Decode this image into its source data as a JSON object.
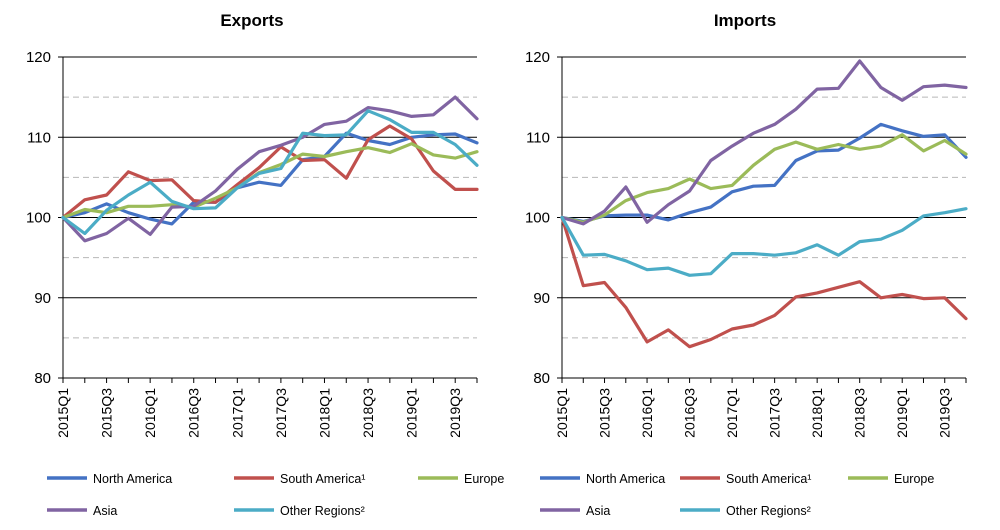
{
  "chart_data": [
    {
      "type": "line",
      "title": "Exports",
      "xlabel": "",
      "ylabel": "",
      "ylim": [
        80,
        120
      ],
      "yticks": [
        80,
        90,
        100,
        110,
        120
      ],
      "solid_gridlines": [
        90,
        100,
        110,
        120
      ],
      "dashed_gridlines": [
        85,
        95,
        105,
        115
      ],
      "x": [
        "2015Q1",
        "2015Q2",
        "2015Q3",
        "2015Q4",
        "2016Q1",
        "2016Q2",
        "2016Q3",
        "2016Q4",
        "2017Q1",
        "2017Q2",
        "2017Q3",
        "2017Q4",
        "2018Q1",
        "2018Q2",
        "2018Q3",
        "2018Q4",
        "2019Q1",
        "2019Q2",
        "2019Q3",
        "2019Q4"
      ],
      "x_tick_labels": [
        "2015Q1",
        "2015Q3",
        "2016Q1",
        "2016Q3",
        "2017Q1",
        "2017Q3",
        "2018Q1",
        "2018Q3",
        "2019Q1",
        "2019Q3"
      ],
      "series": [
        {
          "name": "North America",
          "color": "#4472c4",
          "values": [
            100,
            100.6,
            101.7,
            100.6,
            99.8,
            99.2,
            101.9,
            101.9,
            103.7,
            104.4,
            104.0,
            107.2,
            107.6,
            110.5,
            109.6,
            109.1,
            110.0,
            110.3,
            110.4,
            109.3
          ]
        },
        {
          "name": "South America¹",
          "color": "#c0504d",
          "values": [
            100,
            102.2,
            102.8,
            105.7,
            104.6,
            104.7,
            102.1,
            101.9,
            104.1,
            106.2,
            108.8,
            107.1,
            107.2,
            104.9,
            109.7,
            111.4,
            109.8,
            105.8,
            103.5,
            103.5
          ]
        },
        {
          "name": "Europe",
          "color": "#9bbb59",
          "values": [
            100,
            101.0,
            100.6,
            101.4,
            101.4,
            101.6,
            101.3,
            102.4,
            103.7,
            105.6,
            106.6,
            107.9,
            107.6,
            108.2,
            108.7,
            108.1,
            109.2,
            107.8,
            107.4,
            108.2
          ]
        },
        {
          "name": "Asia",
          "color": "#8064a2",
          "values": [
            100,
            97.1,
            98.0,
            99.9,
            97.9,
            101.3,
            101.4,
            103.3,
            106.0,
            108.2,
            109.0,
            110.0,
            111.6,
            112.0,
            113.7,
            113.3,
            112.6,
            112.8,
            115.0,
            112.3
          ]
        },
        {
          "name": "Other Regions²",
          "color": "#4bacc6",
          "values": [
            100,
            98.0,
            100.9,
            102.8,
            104.4,
            102.0,
            101.1,
            101.2,
            103.7,
            105.5,
            106.1,
            110.5,
            110.2,
            110.3,
            113.3,
            112.2,
            110.6,
            110.6,
            109.1,
            106.5
          ]
        }
      ],
      "legend": "bottom"
    },
    {
      "type": "line",
      "title": "Imports",
      "xlabel": "",
      "ylabel": "",
      "ylim": [
        80,
        120
      ],
      "yticks": [
        80,
        90,
        100,
        110,
        120
      ],
      "solid_gridlines": [
        90,
        100,
        110,
        120
      ],
      "dashed_gridlines": [
        85,
        95,
        105,
        115
      ],
      "x": [
        "2015Q1",
        "2015Q2",
        "2015Q3",
        "2015Q4",
        "2016Q1",
        "2016Q2",
        "2016Q3",
        "2016Q4",
        "2017Q1",
        "2017Q2",
        "2017Q3",
        "2017Q4",
        "2018Q1",
        "2018Q2",
        "2018Q3",
        "2018Q4",
        "2019Q1",
        "2019Q2",
        "2019Q3",
        "2019Q4"
      ],
      "x_tick_labels": [
        "2015Q1",
        "2015Q3",
        "2016Q1",
        "2016Q3",
        "2017Q1",
        "2017Q3",
        "2018Q1",
        "2018Q3",
        "2019Q1",
        "2019Q3"
      ],
      "series": [
        {
          "name": "North America",
          "color": "#4472c4",
          "values": [
            100,
            99.5,
            100.2,
            100.3,
            100.3,
            99.7,
            100.6,
            101.3,
            103.2,
            103.9,
            104.0,
            107.1,
            108.3,
            108.4,
            109.9,
            111.6,
            110.8,
            110.1,
            110.3,
            107.5
          ]
        },
        {
          "name": "South America¹",
          "color": "#c0504d",
          "values": [
            100,
            91.5,
            91.9,
            88.8,
            84.5,
            86.0,
            83.9,
            84.8,
            86.1,
            86.6,
            87.8,
            90.1,
            90.6,
            91.3,
            92.0,
            90.0,
            90.4,
            89.9,
            90.0,
            87.4
          ]
        },
        {
          "name": "Europe",
          "color": "#9bbb59",
          "values": [
            100,
            99.4,
            100.3,
            102.1,
            103.1,
            103.6,
            104.8,
            103.6,
            104.0,
            106.5,
            108.5,
            109.4,
            108.5,
            109.1,
            108.5,
            108.9,
            110.3,
            108.3,
            109.6,
            107.9
          ]
        },
        {
          "name": "Asia",
          "color": "#8064a2",
          "values": [
            100,
            99.2,
            100.8,
            103.8,
            99.4,
            101.6,
            103.3,
            107.1,
            108.9,
            110.5,
            111.6,
            113.5,
            116.0,
            116.1,
            119.5,
            116.2,
            114.6,
            116.3,
            116.5,
            116.2
          ]
        },
        {
          "name": "Other Regions²",
          "color": "#4bacc6",
          "values": [
            100,
            95.3,
            95.4,
            94.6,
            93.5,
            93.7,
            92.8,
            93.0,
            95.5,
            95.5,
            95.3,
            95.6,
            96.6,
            95.3,
            97.0,
            97.3,
            98.4,
            100.2,
            100.6,
            101.1
          ]
        }
      ],
      "legend": "bottom"
    }
  ]
}
